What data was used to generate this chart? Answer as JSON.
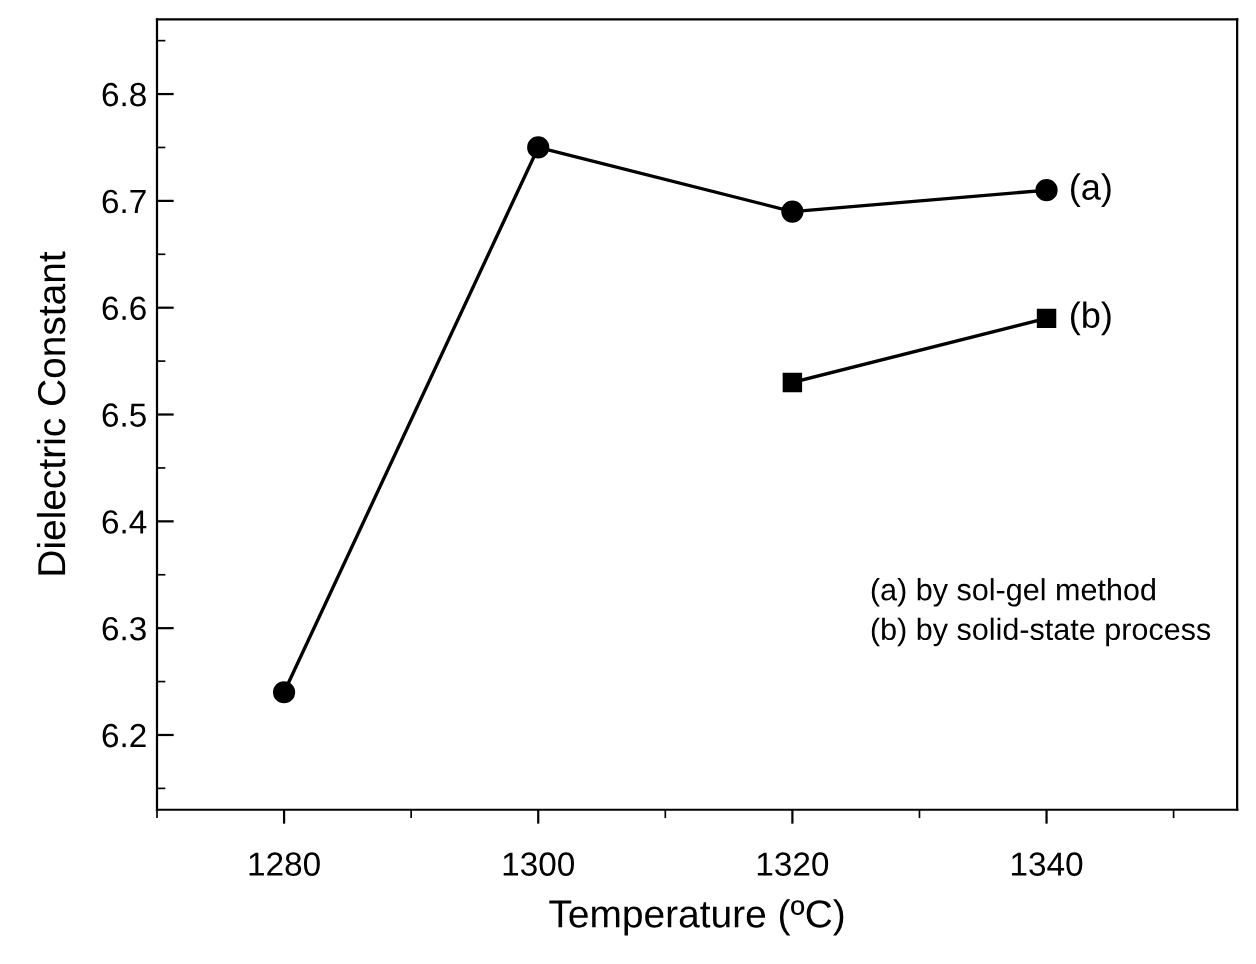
{
  "chart_data": {
    "type": "line",
    "xlabel": "Temperature (ºC)",
    "ylabel": "Dielectric Constant",
    "series": [
      {
        "x": [
          1280,
          1300,
          1320,
          1340
        ],
        "values": [
          6.24,
          6.75,
          6.69,
          6.71
        ],
        "color": "#000000",
        "marker": "circle"
      },
      {
        "x": [
          1320,
          1340
        ],
        "values": [
          6.53,
          6.59
        ],
        "color": "#000000",
        "marker": "square"
      }
    ],
    "xlim": [
      1270,
      1355
    ],
    "xticks": [
      1280,
      1300,
      1320,
      1340
    ],
    "ylim": [
      6.13,
      6.87
    ],
    "yticks": [
      6.2,
      6.3,
      6.4,
      6.5,
      6.6,
      6.7,
      6.8
    ],
    "grid": false,
    "legend": false,
    "line_style": "solid",
    "annotations": [
      {
        "text": "(a)",
        "x": 1340,
        "y": 6.71
      },
      {
        "text": "(b)",
        "x": 1340,
        "y": 6.59
      },
      "(a) by sol-gel method\n(b) by solid-state process"
    ]
  }
}
